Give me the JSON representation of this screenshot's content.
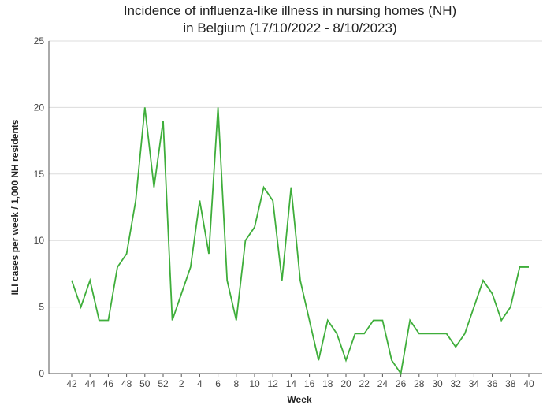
{
  "chart_data": {
    "type": "line",
    "title": "Incidence of influenza-like illness in nursing homes (NH)",
    "subtitle": "in Belgium (17/10/2022 - 8/10/2023)",
    "xlabel": "Week",
    "ylabel": "ILI cases per week / 1,000 NH residents",
    "ylim": [
      0,
      25
    ],
    "yticks": [
      0,
      5,
      10,
      15,
      20,
      25
    ],
    "grid": true,
    "x": [
      42,
      43,
      44,
      45,
      46,
      47,
      48,
      49,
      50,
      51,
      52,
      1,
      2,
      3,
      4,
      5,
      6,
      7,
      8,
      9,
      10,
      11,
      12,
      13,
      14,
      15,
      16,
      17,
      18,
      19,
      20,
      21,
      22,
      23,
      24,
      25,
      26,
      27,
      28,
      29,
      30,
      31,
      32,
      33,
      34,
      35,
      36,
      37,
      38,
      39,
      40
    ],
    "xtick_labels": [
      "42",
      "44",
      "46",
      "48",
      "50",
      "52",
      "2",
      "4",
      "6",
      "8",
      "10",
      "12",
      "14",
      "16",
      "18",
      "20",
      "22",
      "24",
      "26",
      "28",
      "30",
      "32",
      "34",
      "36",
      "38",
      "40"
    ],
    "series": [
      {
        "values": [
          7,
          5,
          7,
          4,
          4,
          8,
          9,
          13,
          20,
          14,
          19,
          4,
          6,
          8,
          13,
          9,
          20,
          7,
          4,
          10,
          11,
          14,
          13,
          7,
          14,
          7,
          4,
          1,
          4,
          3,
          1,
          3,
          3,
          4,
          4,
          1,
          0,
          4,
          3,
          3,
          3,
          3,
          2,
          3,
          5,
          7,
          6,
          4,
          5,
          8,
          8
        ],
        "color": "#3fae3b"
      }
    ]
  }
}
